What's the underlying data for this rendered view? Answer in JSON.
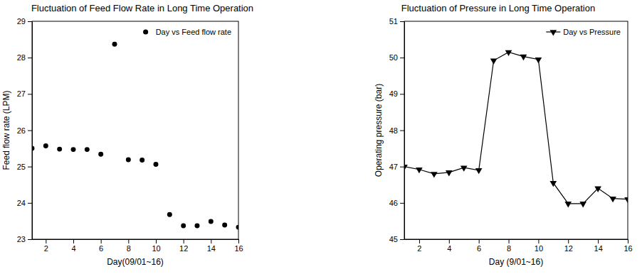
{
  "chart_data": [
    {
      "type": "scatter",
      "title": "Fluctuation of Feed Flow Rate in Long Time Operation",
      "x_label": "Day(09/01~16)",
      "y_label": "Feed flow rate (LPM)",
      "x": [
        1,
        2,
        3,
        4,
        5,
        6,
        7,
        8,
        9,
        10,
        11,
        12,
        13,
        14,
        15,
        16
      ],
      "series": [
        {
          "name": "Day vs Feed flow rate",
          "color": "#000000",
          "marker": "circle",
          "values": [
            25.5,
            25.57,
            25.48,
            25.47,
            25.47,
            25.34,
            28.37,
            25.19,
            25.18,
            25.06,
            23.68,
            23.37,
            23.37,
            23.49,
            23.39,
            23.33
          ]
        }
      ],
      "xlim": [
        1,
        16
      ],
      "xticks": [
        2,
        4,
        6,
        8,
        10,
        12,
        14,
        16
      ],
      "ylim": [
        23,
        29
      ],
      "yticks": [
        23,
        24,
        25,
        26,
        27,
        28,
        29
      ],
      "legend": "upper right"
    },
    {
      "type": "line",
      "title": "Fluctuation of Pressure in Long Time Operation",
      "x_label": "Day (9/01~16)",
      "y_label": "Operating pressure (bar)",
      "x": [
        1,
        2,
        3,
        4,
        5,
        6,
        7,
        8,
        9,
        10,
        11,
        12,
        13,
        14,
        15,
        16
      ],
      "series": [
        {
          "name": "Day vs Pressure",
          "color": "#000000",
          "marker": "triangle-down",
          "line_style": "solid",
          "values": [
            47.0,
            46.92,
            46.8,
            46.84,
            46.97,
            46.9,
            49.92,
            50.15,
            50.03,
            49.95,
            46.55,
            45.98,
            45.98,
            46.4,
            46.12,
            46.1
          ]
        }
      ],
      "xlim": [
        1,
        16
      ],
      "xticks": [
        2,
        4,
        6,
        8,
        10,
        12,
        14,
        16
      ],
      "ylim": [
        45,
        51
      ],
      "yticks": [
        45,
        46,
        47,
        48,
        49,
        50,
        51
      ],
      "legend": "upper right"
    }
  ]
}
